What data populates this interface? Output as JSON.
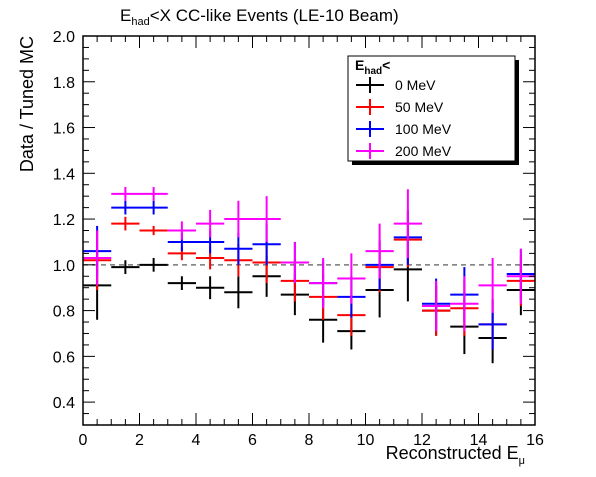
{
  "chart_data": {
    "type": "scatter",
    "title_main": "E",
    "title_sub": "had",
    "title_rest": "<X CC-like Events (LE-10 Beam)",
    "xlabel_main": "Reconstructed E",
    "xlabel_sub": "μ",
    "ylabel": "Data / Tuned MC",
    "xlim": [
      0,
      16
    ],
    "ylim": [
      0.3,
      2.0
    ],
    "x_ticks": [
      0,
      2,
      4,
      6,
      8,
      10,
      12,
      14,
      16
    ],
    "y_ticks": [
      0.4,
      0.6,
      0.8,
      1.0,
      1.2,
      1.4,
      1.6,
      1.8,
      2.0
    ],
    "y_tick_labels": [
      "0.4",
      "0.6",
      "0.8",
      "1.0",
      "1.2",
      "1.4",
      "1.6",
      "1.8",
      "2.0"
    ],
    "x_tick_labels": [
      "0",
      "2",
      "4",
      "6",
      "8",
      "10",
      "12",
      "14",
      "16"
    ],
    "reference_line": 1.0,
    "legend": {
      "title_main": "E",
      "title_sub": "had",
      "title_rest": "<",
      "position": "top-right"
    },
    "series": [
      {
        "name": "0 MeV",
        "color": "#000000",
        "x": [
          0.5,
          1.5,
          2.5,
          3.5,
          4.5,
          5.5,
          6.5,
          7.5,
          8.5,
          9.5,
          10.5,
          11.5,
          12.5,
          13.5,
          14.5,
          15.5
        ],
        "y": [
          0.91,
          0.99,
          1.0,
          0.92,
          0.9,
          0.88,
          0.95,
          0.87,
          0.76,
          0.71,
          0.89,
          0.98,
          0.8,
          0.73,
          0.68,
          0.89
        ],
        "err": [
          0.15,
          0.03,
          0.03,
          0.03,
          0.05,
          0.07,
          0.09,
          0.09,
          0.1,
          0.08,
          0.12,
          0.14,
          0.11,
          0.12,
          0.11,
          0.11
        ]
      },
      {
        "name": "50 MeV",
        "color": "#ff0000",
        "x": [
          0.5,
          1.5,
          2.5,
          3.5,
          4.5,
          5.5,
          6.5,
          7.5,
          8.5,
          9.5,
          10.5,
          11.5,
          12.5,
          13.5,
          14.5,
          15.5
        ],
        "y": [
          1.02,
          1.18,
          1.15,
          1.05,
          1.03,
          1.02,
          1.01,
          0.93,
          0.86,
          0.78,
          0.99,
          1.11,
          0.8,
          0.81,
          0.74,
          0.93
        ],
        "err": [
          0.13,
          0.03,
          0.02,
          0.03,
          0.05,
          0.07,
          0.09,
          0.09,
          0.1,
          0.09,
          0.11,
          0.12,
          0.11,
          0.12,
          0.11,
          0.11
        ]
      },
      {
        "name": "100 MeV",
        "color": "#0000ff",
        "x": [
          0.5,
          1.5,
          2.5,
          3.5,
          4.5,
          5.5,
          6.5,
          7.5,
          8.5,
          9.5,
          10.5,
          11.5,
          12.5,
          13.5,
          14.5,
          15.5
        ],
        "y": [
          1.06,
          1.25,
          1.25,
          1.1,
          1.1,
          1.07,
          1.09,
          1.01,
          0.92,
          0.86,
          1.0,
          1.12,
          0.83,
          0.87,
          0.74,
          0.96
        ],
        "err": [
          0.11,
          0.03,
          0.03,
          0.04,
          0.05,
          0.07,
          0.09,
          0.09,
          0.1,
          0.09,
          0.11,
          0.12,
          0.11,
          0.12,
          0.11,
          0.11
        ]
      },
      {
        "name": "200 MeV",
        "color": "#ff00ff",
        "x": [
          0.5,
          1.5,
          2.5,
          3.5,
          4.5,
          5.5,
          6.5,
          7.5,
          8.5,
          9.5,
          10.5,
          11.5,
          12.5,
          13.5,
          14.5,
          15.5
        ],
        "y": [
          1.03,
          1.31,
          1.31,
          1.15,
          1.18,
          1.2,
          1.2,
          1.01,
          0.92,
          0.94,
          1.06,
          1.18,
          0.82,
          0.83,
          0.91,
          0.95
        ],
        "err": [
          0.12,
          0.03,
          0.03,
          0.04,
          0.06,
          0.08,
          0.1,
          0.09,
          0.11,
          0.11,
          0.12,
          0.15,
          0.11,
          0.12,
          0.12,
          0.12
        ]
      }
    ]
  }
}
